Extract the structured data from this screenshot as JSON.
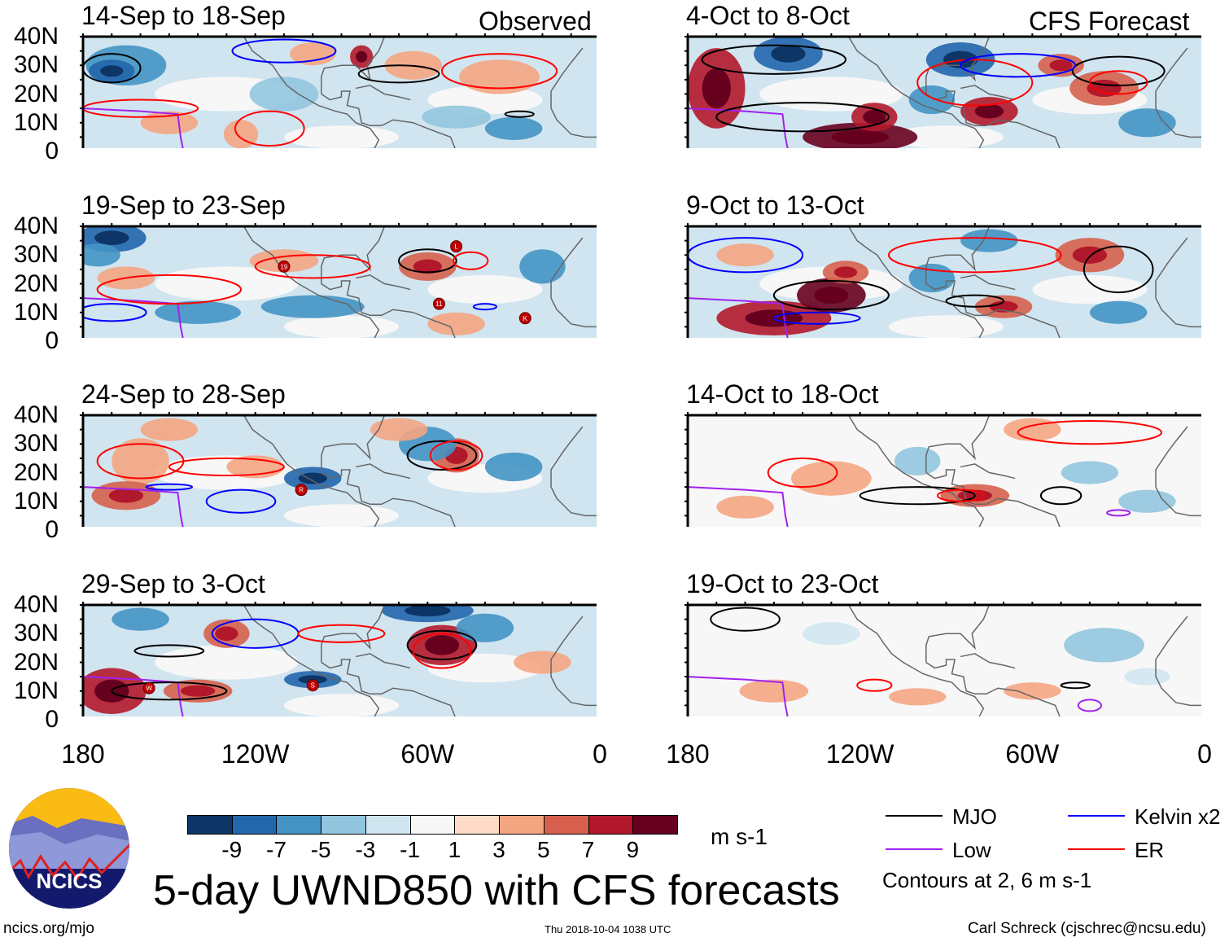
{
  "headers": {
    "left": "Observed",
    "right": "CFS Forecast"
  },
  "panels": [
    {
      "title": "14-Sep to 18-Sep",
      "storms": []
    },
    {
      "title": "19-Sep to 23-Sep",
      "storms": [
        "19",
        "L",
        "11",
        "K"
      ]
    },
    {
      "title": "24-Sep to 28-Sep",
      "storms": [
        "R"
      ]
    },
    {
      "title": "29-Sep to 3-Oct",
      "storms": [
        "W",
        "S"
      ]
    },
    {
      "title": "4-Oct to 8-Oct",
      "storms": []
    },
    {
      "title": "9-Oct to 13-Oct",
      "storms": []
    },
    {
      "title": "14-Oct to 18-Oct",
      "storms": []
    },
    {
      "title": "19-Oct to 23-Oct",
      "storms": []
    }
  ],
  "y_ticks": [
    "40N",
    "30N",
    "20N",
    "10N",
    "0"
  ],
  "x_ticks": [
    "180",
    "120W",
    "60W",
    "0"
  ],
  "colorbar": {
    "colors": [
      "#0d3566",
      "#2266ac",
      "#4393c4",
      "#92c5de",
      "#d1e5f0",
      "#f7f7f7",
      "#fddbc7",
      "#f4a582",
      "#d6604d",
      "#b2182b",
      "#67001f"
    ],
    "labels": [
      "-9",
      "-7",
      "-5",
      "-3",
      "-1",
      "1",
      "3",
      "5",
      "7",
      "9"
    ],
    "units": "m s-1"
  },
  "legend": {
    "items": [
      {
        "label": "MJO",
        "color": "#000000"
      },
      {
        "label": "Kelvin x2",
        "color": "#0000ff"
      },
      {
        "label": "Low",
        "color": "#a020f0"
      },
      {
        "label": "ER",
        "color": "#ff0000"
      }
    ],
    "note": "Contours at 2, 6 m s-1"
  },
  "title": "5-day UWND850 with CFS forecasts",
  "logo_text": "NCICS",
  "footer": {
    "url": "ncics.org/mjo",
    "timestamp": "Thu 2018-10-04 1038 UTC",
    "credit": "Carl Schreck (cjschrec@ncsu.edu)"
  }
}
